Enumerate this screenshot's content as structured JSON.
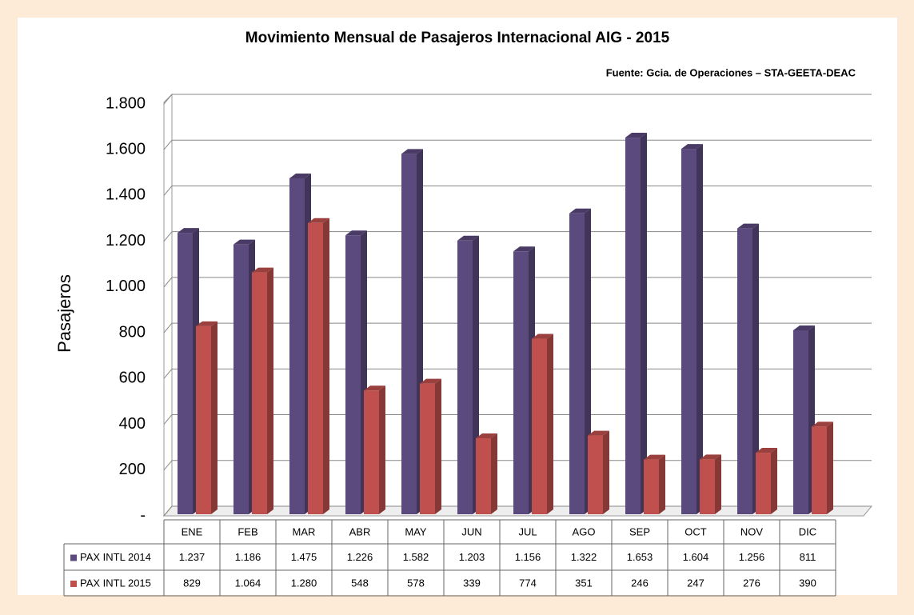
{
  "chart_data": {
    "type": "bar3d",
    "title": "Movimiento Mensual de Pasajeros Internacional AIG - 2015",
    "source": "Fuente: Gcia. de Operaciones – STA-GEETA-DEAC",
    "y_label": "Pasajeros",
    "categories": [
      "ENE",
      "FEB",
      "MAR",
      "ABR",
      "MAY",
      "JUN",
      "JUL",
      "AGO",
      "SEP",
      "OCT",
      "NOV",
      "DIC"
    ],
    "series": [
      {
        "name": "PAX INTL 2014",
        "color": "#5b4a7e",
        "values": [
          1237,
          1186,
          1475,
          1226,
          1582,
          1203,
          1156,
          1322,
          1653,
          1604,
          1256,
          811
        ],
        "value_labels": [
          "1.237",
          "1.186",
          "1.475",
          "1.226",
          "1.582",
          "1.203",
          "1.156",
          "1.322",
          "1.653",
          "1.604",
          "1.256",
          "811"
        ]
      },
      {
        "name": "PAX INTL 2015",
        "color": "#c0504d",
        "values": [
          829,
          1064,
          1280,
          548,
          578,
          339,
          774,
          351,
          246,
          247,
          276,
          390
        ],
        "value_labels": [
          "829",
          "1.064",
          "1.280",
          "548",
          "578",
          "339",
          "774",
          "351",
          "246",
          "247",
          "276",
          "390"
        ]
      }
    ],
    "ylim": [
      0,
      1800
    ],
    "yticks": [
      {
        "value": 0,
        "label": "-"
      },
      200,
      400,
      600,
      800,
      {
        "value": 1000,
        "label": "1.000"
      },
      {
        "value": 1200,
        "label": "1.200"
      },
      {
        "value": 1400,
        "label": "1.400"
      },
      {
        "value": 1600,
        "label": "1.600"
      },
      {
        "value": 1800,
        "label": "1.800"
      }
    ],
    "grid": true
  }
}
